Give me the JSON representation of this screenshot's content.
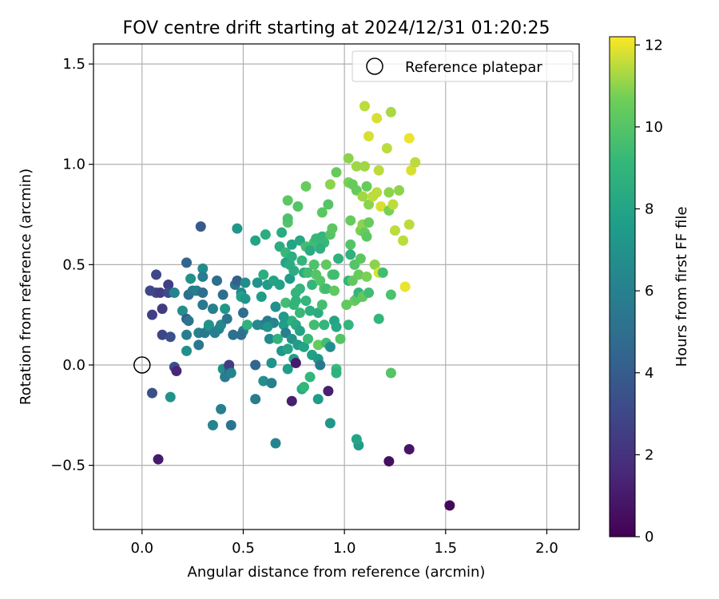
{
  "chart_data": {
    "type": "scatter",
    "title": "FOV centre drift starting at 2024/12/31 01:20:25",
    "xlabel": "Angular distance from reference (arcmin)",
    "ylabel": "Rotation from reference (arcmin)",
    "xlim": [
      -0.24,
      2.16
    ],
    "ylim": [
      -0.82,
      1.6
    ],
    "xticks": [
      "0.0",
      "0.5",
      "1.0",
      "1.5",
      "2.0"
    ],
    "yticks": [
      "−0.5",
      "0.0",
      "0.5",
      "1.0",
      "1.5"
    ],
    "grid": true,
    "legend": {
      "placement": "top-right",
      "entries": [
        "Reference platepar"
      ]
    },
    "reference_point": {
      "x": 0.0,
      "y": 0.0
    },
    "colorbar": {
      "label": "Hours from first FF file",
      "range": [
        0,
        12.2
      ],
      "ticks": [
        "0",
        "2",
        "4",
        "6",
        "8",
        "10",
        "12"
      ],
      "colormap": "viridis"
    },
    "points": [
      [
        0.04,
        0.37,
        3.0
      ],
      [
        0.07,
        0.45,
        3.0
      ],
      [
        0.07,
        0.36,
        3.0
      ],
      [
        0.09,
        0.36,
        2.5
      ],
      [
        0.05,
        0.25,
        2.7
      ],
      [
        0.1,
        0.28,
        2.4
      ],
      [
        0.13,
        0.4,
        2.6
      ],
      [
        0.13,
        0.36,
        3.2
      ],
      [
        0.1,
        0.15,
        2.9
      ],
      [
        0.14,
        0.14,
        3.4
      ],
      [
        0.16,
        -0.01,
        3.3
      ],
      [
        0.17,
        -0.03,
        1.5
      ],
      [
        0.05,
        -0.14,
        3.4
      ],
      [
        0.08,
        -0.47,
        1.0
      ],
      [
        0.14,
        -0.16,
        7.0
      ],
      [
        0.16,
        0.36,
        6.2
      ],
      [
        0.2,
        0.27,
        6.8
      ],
      [
        0.22,
        0.23,
        4.0
      ],
      [
        0.22,
        0.51,
        4.5
      ],
      [
        0.23,
        0.35,
        5.0
      ],
      [
        0.22,
        0.15,
        5.8
      ],
      [
        0.22,
        0.07,
        6.8
      ],
      [
        0.24,
        0.43,
        6.9
      ],
      [
        0.23,
        0.22,
        5.2
      ],
      [
        0.25,
        0.37,
        5.5
      ],
      [
        0.27,
        0.37,
        5.8
      ],
      [
        0.28,
        0.16,
        6.0
      ],
      [
        0.28,
        0.1,
        5.5
      ],
      [
        0.3,
        0.48,
        6.6
      ],
      [
        0.3,
        0.44,
        5.8
      ],
      [
        0.3,
        0.36,
        5.0
      ],
      [
        0.29,
        0.69,
        3.9
      ],
      [
        0.3,
        0.3,
        5.6
      ],
      [
        0.31,
        0.16,
        5.5
      ],
      [
        0.33,
        0.19,
        6.5
      ],
      [
        0.33,
        0.2,
        6.9
      ],
      [
        0.35,
        0.28,
        6.0
      ],
      [
        0.36,
        0.16,
        5.8
      ],
      [
        0.37,
        0.42,
        5.0
      ],
      [
        0.38,
        0.18,
        6.0
      ],
      [
        0.39,
        0.2,
        6.5
      ],
      [
        0.4,
        0.35,
        5.0
      ],
      [
        0.41,
        0.28,
        7.2
      ],
      [
        0.42,
        0.23,
        5.4
      ],
      [
        0.4,
        -0.02,
        6.8
      ],
      [
        0.41,
        -0.06,
        5.7
      ],
      [
        0.43,
        -0.02,
        5.0
      ],
      [
        0.43,
        0.0,
        2.5
      ],
      [
        0.44,
        -0.04,
        6.1
      ],
      [
        0.45,
        0.15,
        5.1
      ],
      [
        0.39,
        -0.22,
        6.0
      ],
      [
        0.35,
        -0.3,
        6.2
      ],
      [
        0.44,
        -0.3,
        5.3
      ],
      [
        0.46,
        0.4,
        5.3
      ],
      [
        0.47,
        0.42,
        4.2
      ],
      [
        0.47,
        0.68,
        7.2
      ],
      [
        0.49,
        0.36,
        6.5
      ],
      [
        0.49,
        0.34,
        7.8
      ],
      [
        0.5,
        0.26,
        5.0
      ],
      [
        0.5,
        0.17,
        6.0
      ],
      [
        0.49,
        0.15,
        5.0
      ],
      [
        0.51,
        0.33,
        7.2
      ],
      [
        0.51,
        0.41,
        6.7
      ],
      [
        0.52,
        0.2,
        8.8
      ],
      [
        0.56,
        0.62,
        8.0
      ],
      [
        0.57,
        0.41,
        7.0
      ],
      [
        0.56,
        -0.17,
        5.7
      ],
      [
        0.56,
        0.0,
        4.5
      ],
      [
        0.59,
        0.34,
        7.5
      ],
      [
        0.6,
        0.45,
        8.6
      ],
      [
        0.6,
        0.2,
        5.6
      ],
      [
        0.61,
        0.65,
        8.5
      ],
      [
        0.6,
        -0.08,
        6.8
      ],
      [
        0.62,
        0.4,
        7.5
      ],
      [
        0.62,
        0.22,
        5.7
      ],
      [
        0.63,
        0.13,
        6.5
      ],
      [
        0.64,
        0.01,
        7.0
      ],
      [
        0.64,
        -0.09,
        6.0
      ],
      [
        0.65,
        0.21,
        6.2
      ],
      [
        0.65,
        0.42,
        8.0
      ],
      [
        0.66,
        0.29,
        7.5
      ],
      [
        0.66,
        -0.39,
        6.2
      ],
      [
        0.67,
        0.13,
        8.8
      ],
      [
        0.68,
        0.4,
        7.8
      ],
      [
        0.68,
        0.59,
        8.5
      ],
      [
        0.69,
        0.07,
        7.2
      ],
      [
        0.7,
        0.2,
        7.6
      ],
      [
        0.71,
        0.16,
        6.0
      ],
      [
        0.71,
        0.31,
        9.5
      ],
      [
        0.72,
        0.08,
        8.0
      ],
      [
        0.72,
        -0.02,
        7.6
      ],
      [
        0.71,
        0.51,
        8.0
      ],
      [
        0.71,
        0.56,
        9.2
      ],
      [
        0.72,
        0.71,
        10.0
      ],
      [
        0.72,
        0.73,
        9.8
      ],
      [
        0.72,
        0.82,
        10.2
      ],
      [
        0.73,
        0.5,
        8.5
      ],
      [
        0.73,
        0.43,
        7.5
      ],
      [
        0.74,
        0.54,
        8.6
      ],
      [
        0.74,
        0.6,
        8.0
      ],
      [
        0.74,
        0.22,
        8.8
      ],
      [
        0.74,
        0.13,
        7.0
      ],
      [
        0.74,
        -0.18,
        1.2
      ],
      [
        0.75,
        0.3,
        9.0
      ],
      [
        0.75,
        0.47,
        8.5
      ],
      [
        0.75,
        0.03,
        7.7
      ],
      [
        0.76,
        0.2,
        8.3
      ],
      [
        0.76,
        0.36,
        9.0
      ],
      [
        0.76,
        0.01,
        1.0
      ],
      [
        0.77,
        0.1,
        7.5
      ],
      [
        0.77,
        0.79,
        10.0
      ],
      [
        0.78,
        0.38,
        9.0
      ],
      [
        0.78,
        0.26,
        9.2
      ],
      [
        0.78,
        0.17,
        8.0
      ],
      [
        0.78,
        0.62,
        8.2
      ],
      [
        0.79,
        0.52,
        9.0
      ],
      [
        0.79,
        -0.12,
        8.2
      ],
      [
        0.8,
        0.46,
        8.5
      ],
      [
        0.8,
        0.09,
        8.0
      ],
      [
        0.8,
        -0.11,
        9.0
      ],
      [
        0.81,
        0.89,
        10.5
      ],
      [
        0.81,
        0.59,
        9.5
      ],
      [
        0.81,
        0.32,
        9.0
      ],
      [
        0.82,
        0.46,
        9.5
      ],
      [
        0.82,
        0.13,
        9.3
      ],
      [
        0.83,
        0.27,
        8.6
      ],
      [
        0.83,
        -0.06,
        9.0
      ],
      [
        0.84,
        0.4,
        9.0
      ],
      [
        0.84,
        0.05,
        7.8
      ],
      [
        0.85,
        0.61,
        9.5
      ],
      [
        0.85,
        0.2,
        9.5
      ],
      [
        0.85,
        0.5,
        9.8
      ],
      [
        0.86,
        0.45,
        10.0
      ],
      [
        0.86,
        0.63,
        9.2
      ],
      [
        0.87,
        0.1,
        10.5
      ],
      [
        0.87,
        0.26,
        8.5
      ],
      [
        0.87,
        0.03,
        7.5
      ],
      [
        0.87,
        -0.17,
        7.5
      ],
      [
        0.88,
        0.42,
        10.0
      ],
      [
        0.88,
        0.0,
        5.5
      ],
      [
        0.89,
        0.76,
        10.2
      ],
      [
        0.89,
        0.64,
        9.0
      ],
      [
        0.89,
        0.3,
        9.6
      ],
      [
        0.9,
        0.61,
        9.2
      ],
      [
        0.9,
        0.2,
        9.0
      ],
      [
        0.9,
        0.38,
        10.0
      ],
      [
        0.91,
        0.5,
        10.3
      ],
      [
        0.91,
        0.38,
        9.5
      ],
      [
        0.91,
        0.11,
        9.5
      ],
      [
        0.92,
        0.8,
        10.0
      ],
      [
        0.92,
        -0.13,
        1.2
      ],
      [
        0.93,
        0.65,
        10.0
      ],
      [
        0.93,
        0.9,
        11.0
      ],
      [
        0.93,
        0.09,
        6.8
      ],
      [
        0.93,
        -0.29,
        7.2
      ],
      [
        0.94,
        0.68,
        10.2
      ],
      [
        0.94,
        0.45,
        9.8
      ],
      [
        0.95,
        0.22,
        8.0
      ],
      [
        0.95,
        0.37,
        10.3
      ],
      [
        0.95,
        0.45,
        9.5
      ],
      [
        0.96,
        0.96,
        10.5
      ],
      [
        0.96,
        -0.02,
        9.3
      ],
      [
        0.96,
        -0.04,
        8.8
      ],
      [
        0.96,
        0.19,
        8.2
      ],
      [
        0.97,
        0.53,
        8.8
      ],
      [
        0.98,
        0.13,
        10.0
      ],
      [
        1.01,
        0.3,
        10.3
      ],
      [
        1.02,
        0.2,
        9.0
      ],
      [
        1.02,
        1.03,
        11.0
      ],
      [
        1.02,
        0.91,
        10.8
      ],
      [
        1.02,
        0.42,
        9.0
      ],
      [
        1.03,
        0.6,
        10.0
      ],
      [
        1.03,
        0.72,
        10.5
      ],
      [
        1.03,
        0.55,
        8.8
      ],
      [
        1.04,
        0.9,
        10.5
      ],
      [
        1.04,
        0.42,
        10.3
      ],
      [
        1.05,
        0.32,
        10.5
      ],
      [
        1.05,
        0.5,
        10.0
      ],
      [
        1.06,
        0.87,
        10.5
      ],
      [
        1.06,
        0.99,
        11.2
      ],
      [
        1.06,
        0.33,
        10.2
      ],
      [
        1.07,
        0.45,
        10.5
      ],
      [
        1.07,
        0.36,
        9.0
      ],
      [
        1.07,
        -0.4,
        7.5
      ],
      [
        1.06,
        -0.37,
        8.0
      ],
      [
        1.08,
        0.67,
        10.8
      ],
      [
        1.08,
        0.53,
        10.2
      ],
      [
        1.09,
        0.84,
        11.2
      ],
      [
        1.09,
        0.7,
        11.0
      ],
      [
        1.09,
        0.34,
        10.3
      ],
      [
        1.1,
        0.66,
        10.5
      ],
      [
        1.1,
        1.29,
        11.5
      ],
      [
        1.1,
        0.99,
        11.2
      ],
      [
        1.11,
        0.89,
        10.5
      ],
      [
        1.11,
        0.44,
        10.8
      ],
      [
        1.11,
        0.64,
        10.2
      ],
      [
        1.12,
        0.8,
        11.0
      ],
      [
        1.12,
        0.71,
        10.5
      ],
      [
        1.12,
        1.14,
        11.8
      ],
      [
        1.12,
        0.36,
        9.5
      ],
      [
        1.14,
        0.84,
        11.5
      ],
      [
        1.15,
        0.5,
        11.0
      ],
      [
        1.16,
        0.86,
        11.5
      ],
      [
        1.16,
        1.23,
        11.8
      ],
      [
        1.17,
        0.23,
        9.0
      ],
      [
        1.17,
        0.97,
        11.5
      ],
      [
        1.17,
        0.46,
        11.8
      ],
      [
        1.18,
        0.79,
        11.8
      ],
      [
        1.19,
        0.46,
        9.5
      ],
      [
        1.21,
        1.08,
        11.5
      ],
      [
        1.22,
        -0.48,
        0.5
      ],
      [
        1.22,
        0.86,
        11.0
      ],
      [
        1.22,
        0.77,
        10.8
      ],
      [
        1.23,
        1.26,
        11.3
      ],
      [
        1.23,
        0.35,
        9.8
      ],
      [
        1.23,
        -0.04,
        10.0
      ],
      [
        1.24,
        0.8,
        11.5
      ],
      [
        1.25,
        0.67,
        11.5
      ],
      [
        1.27,
        0.87,
        11.0
      ],
      [
        1.29,
        0.62,
        11.5
      ],
      [
        1.3,
        0.39,
        12.0
      ],
      [
        1.32,
        -0.42,
        0.8
      ],
      [
        1.32,
        0.7,
        11.5
      ],
      [
        1.32,
        1.13,
        12.0
      ],
      [
        1.33,
        0.97,
        11.8
      ],
      [
        1.35,
        1.01,
        11.5
      ],
      [
        1.52,
        -0.7,
        0.3
      ],
      [
        0.69,
        0.66,
        8.4
      ],
      [
        0.83,
        0.57,
        8.4
      ],
      [
        0.88,
        0.58,
        8.7
      ],
      [
        0.62,
        0.19,
        7.1
      ],
      [
        0.7,
        0.24,
        7.4
      ],
      [
        0.76,
        0.32,
        8.9
      ],
      [
        0.57,
        0.2,
        6.4
      ],
      [
        0.66,
        0.29,
        6.9
      ]
    ]
  }
}
